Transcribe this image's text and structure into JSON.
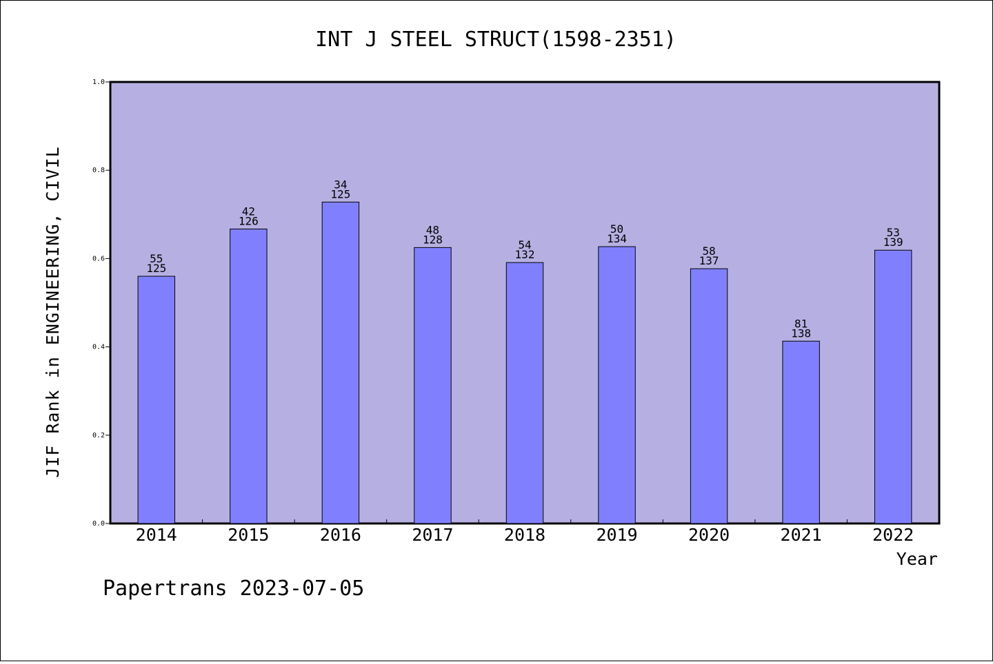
{
  "chart_data": {
    "type": "bar",
    "title": "INT J STEEL STRUCT(1598-2351)",
    "xlabel": "Year",
    "ylabel": "JIF Rank in ENGINEERING, CIVIL",
    "ylim": [
      0,
      1.0
    ],
    "yticks": [
      "0.0",
      "0.2",
      "0.4",
      "0.6",
      "0.8",
      "1.0"
    ],
    "categories": [
      "2014",
      "2015",
      "2016",
      "2017",
      "2018",
      "2019",
      "2020",
      "2021",
      "2022"
    ],
    "values": [
      0.56,
      0.667,
      0.728,
      0.625,
      0.591,
      0.627,
      0.577,
      0.413,
      0.619
    ],
    "labels_top": [
      "55",
      "42",
      "34",
      "48",
      "54",
      "50",
      "58",
      "81",
      "53"
    ],
    "labels_bottom": [
      "125",
      "126",
      "125",
      "128",
      "132",
      "134",
      "137",
      "138",
      "139"
    ],
    "plot_background": "#b6b0e2",
    "bar_color": "#8080ff",
    "grid": false,
    "legend": "none"
  },
  "footer": "Papertrans 2023-07-05"
}
